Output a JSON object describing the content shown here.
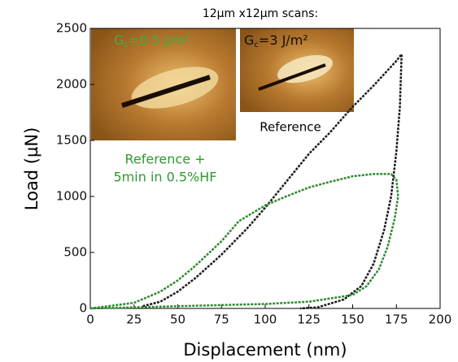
{
  "chart_data": {
    "type": "line",
    "x_label": "Displacement (nm)",
    "y_label": "Load (µN)",
    "xlim": [
      0,
      200
    ],
    "xticks": [
      0,
      25,
      50,
      75,
      100,
      125,
      150,
      175,
      200
    ],
    "ylim": [
      0,
      2500
    ],
    "yticks": [
      0,
      500,
      1000,
      1500,
      2000,
      2500
    ],
    "series": [
      {
        "color": "#1a1a1a",
        "x": [
          30,
          40,
          50,
          60,
          75,
          90,
          100,
          112,
          125,
          137,
          150,
          162,
          175,
          178,
          177,
          175,
          172,
          168,
          162,
          155,
          145,
          130,
          120
        ],
        "values": [
          20,
          60,
          150,
          270,
          480,
          720,
          900,
          1130,
          1380,
          1570,
          1800,
          1990,
          2210,
          2270,
          1800,
          1400,
          1000,
          700,
          400,
          200,
          80,
          10,
          0
        ]
      },
      {
        "color": "#2e8b2e",
        "x": [
          0,
          25,
          40,
          50,
          60,
          75,
          85,
          100,
          112,
          125,
          137,
          150,
          162,
          172,
          175,
          176,
          174,
          170,
          165,
          158,
          150,
          125,
          100,
          75,
          50,
          25,
          0
        ],
        "values": [
          0,
          50,
          150,
          250,
          380,
          600,
          780,
          920,
          1000,
          1080,
          1130,
          1180,
          1200,
          1200,
          1150,
          1000,
          800,
          550,
          350,
          200,
          120,
          60,
          40,
          30,
          20,
          10,
          0
        ]
      }
    ],
    "annotations": {
      "header": "12µm x12µm scans:",
      "inset1": {
        "main": "G",
        "sub": "c",
        "rest": "=0.5 J/m²"
      },
      "inset2": {
        "main": "G",
        "sub": "c",
        "rest": "=3 J/m²"
      },
      "reference": "Reference",
      "treated_line1": "Reference +",
      "treated_line2": "5min in 0.5%HF"
    }
  }
}
